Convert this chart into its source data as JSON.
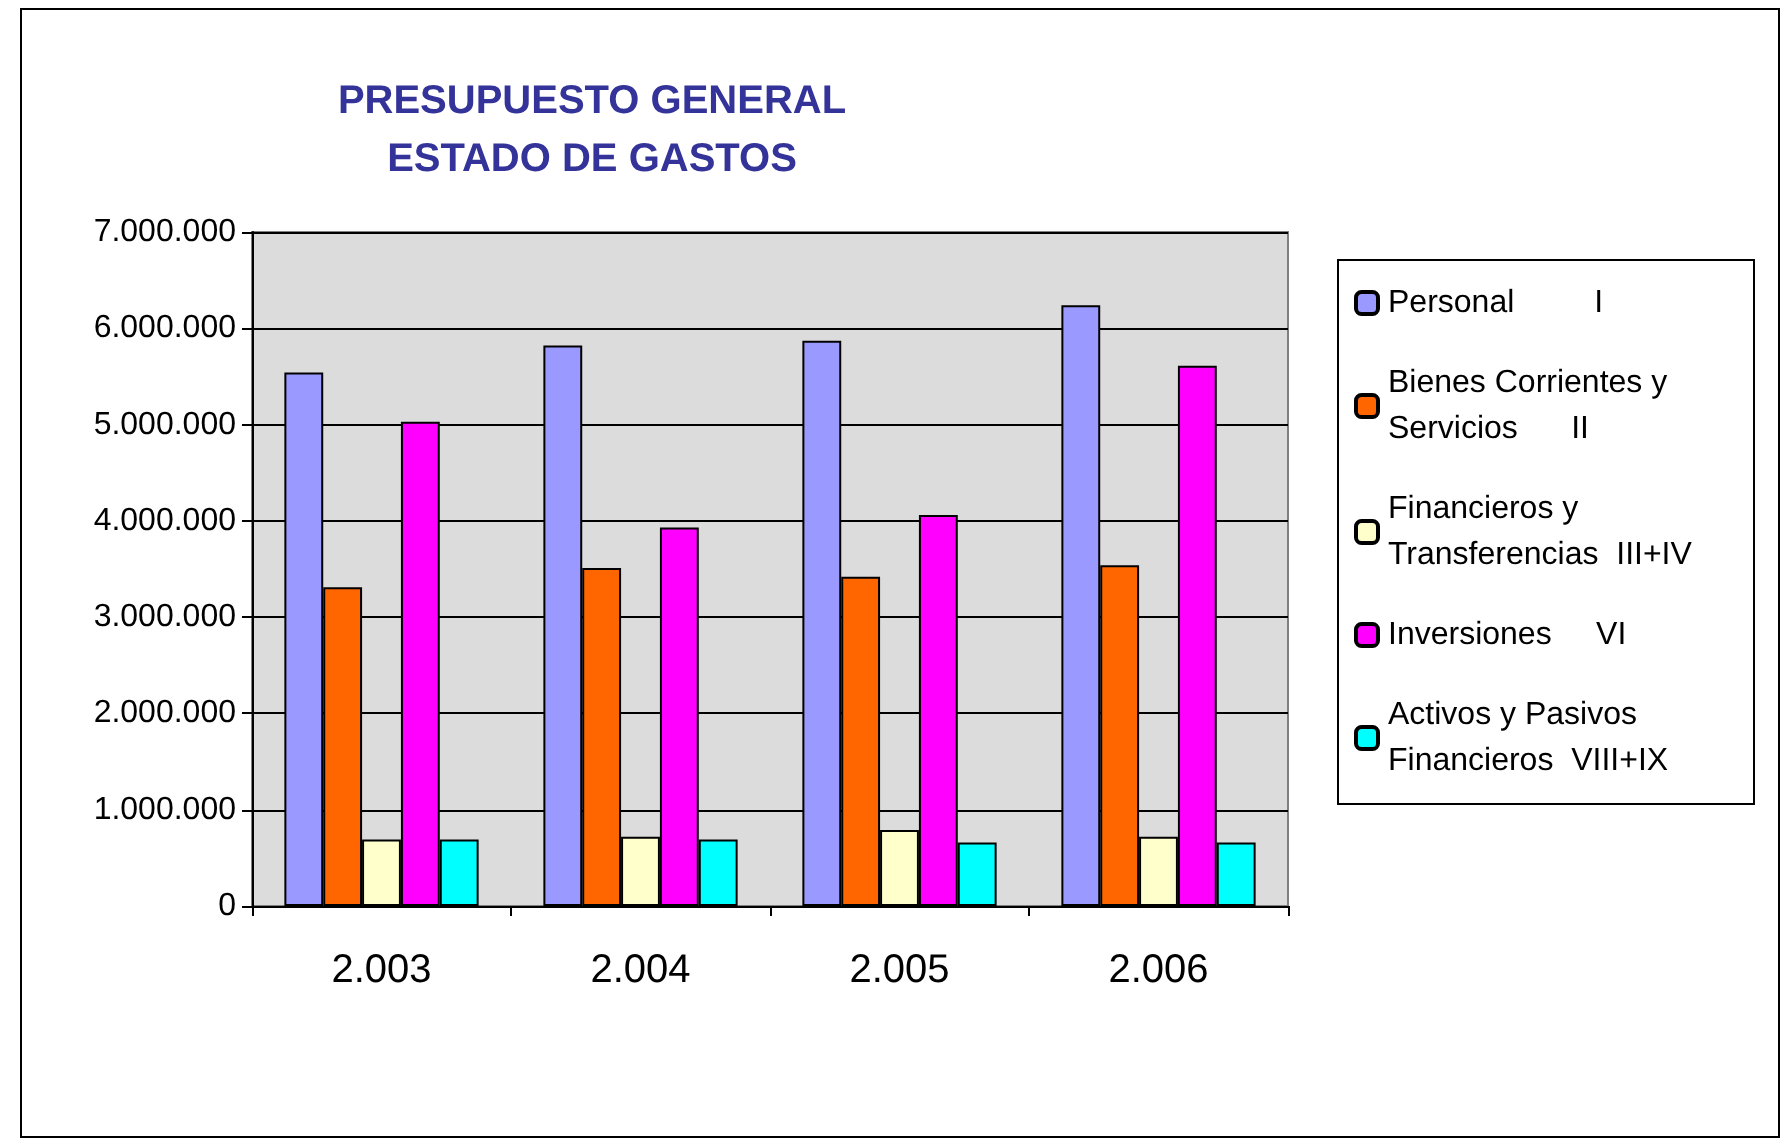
{
  "chart_data": {
    "type": "bar",
    "title": "PRESUPUESTO GENERAL\nESTADO DE GASTOS",
    "categories": [
      "2.003",
      "2.004",
      "2.005",
      "2.006"
    ],
    "series": [
      {
        "name": "Personal         I",
        "color": "#9999ff",
        "values": [
          5540000,
          5820000,
          5870000,
          6240000
        ]
      },
      {
        "name": "Bienes Corrientes y Servicios      II",
        "color": "#ff6600",
        "values": [
          3310000,
          3510000,
          3420000,
          3540000
        ]
      },
      {
        "name": "Financieros y Transferencias  III+IV",
        "color": "#ffffcc",
        "values": [
          690000,
          720000,
          790000,
          720000
        ]
      },
      {
        "name": "Inversiones     VI",
        "color": "#ff00ff",
        "values": [
          5030000,
          3930000,
          4060000,
          5610000
        ]
      },
      {
        "name": "Activos y Pasivos Financieros  VIII+IX",
        "color": "#00ffff",
        "values": [
          690000,
          690000,
          660000,
          660000
        ]
      }
    ],
    "ylim": [
      0,
      7000000
    ],
    "yticks": [
      0,
      {
        "value": 1000000,
        "label": "1.000.000"
      },
      {
        "value": 2000000,
        "label": "2.000.000"
      },
      {
        "value": 3000000,
        "label": "3.000.000"
      },
      {
        "value": 4000000,
        "label": "4.000.000"
      },
      {
        "value": 5000000,
        "label": "5.000.000"
      },
      {
        "value": 6000000,
        "label": "6.000.000"
      },
      {
        "value": 7000000,
        "label": "7.000.000"
      }
    ],
    "grid": "y",
    "legend": "right"
  }
}
